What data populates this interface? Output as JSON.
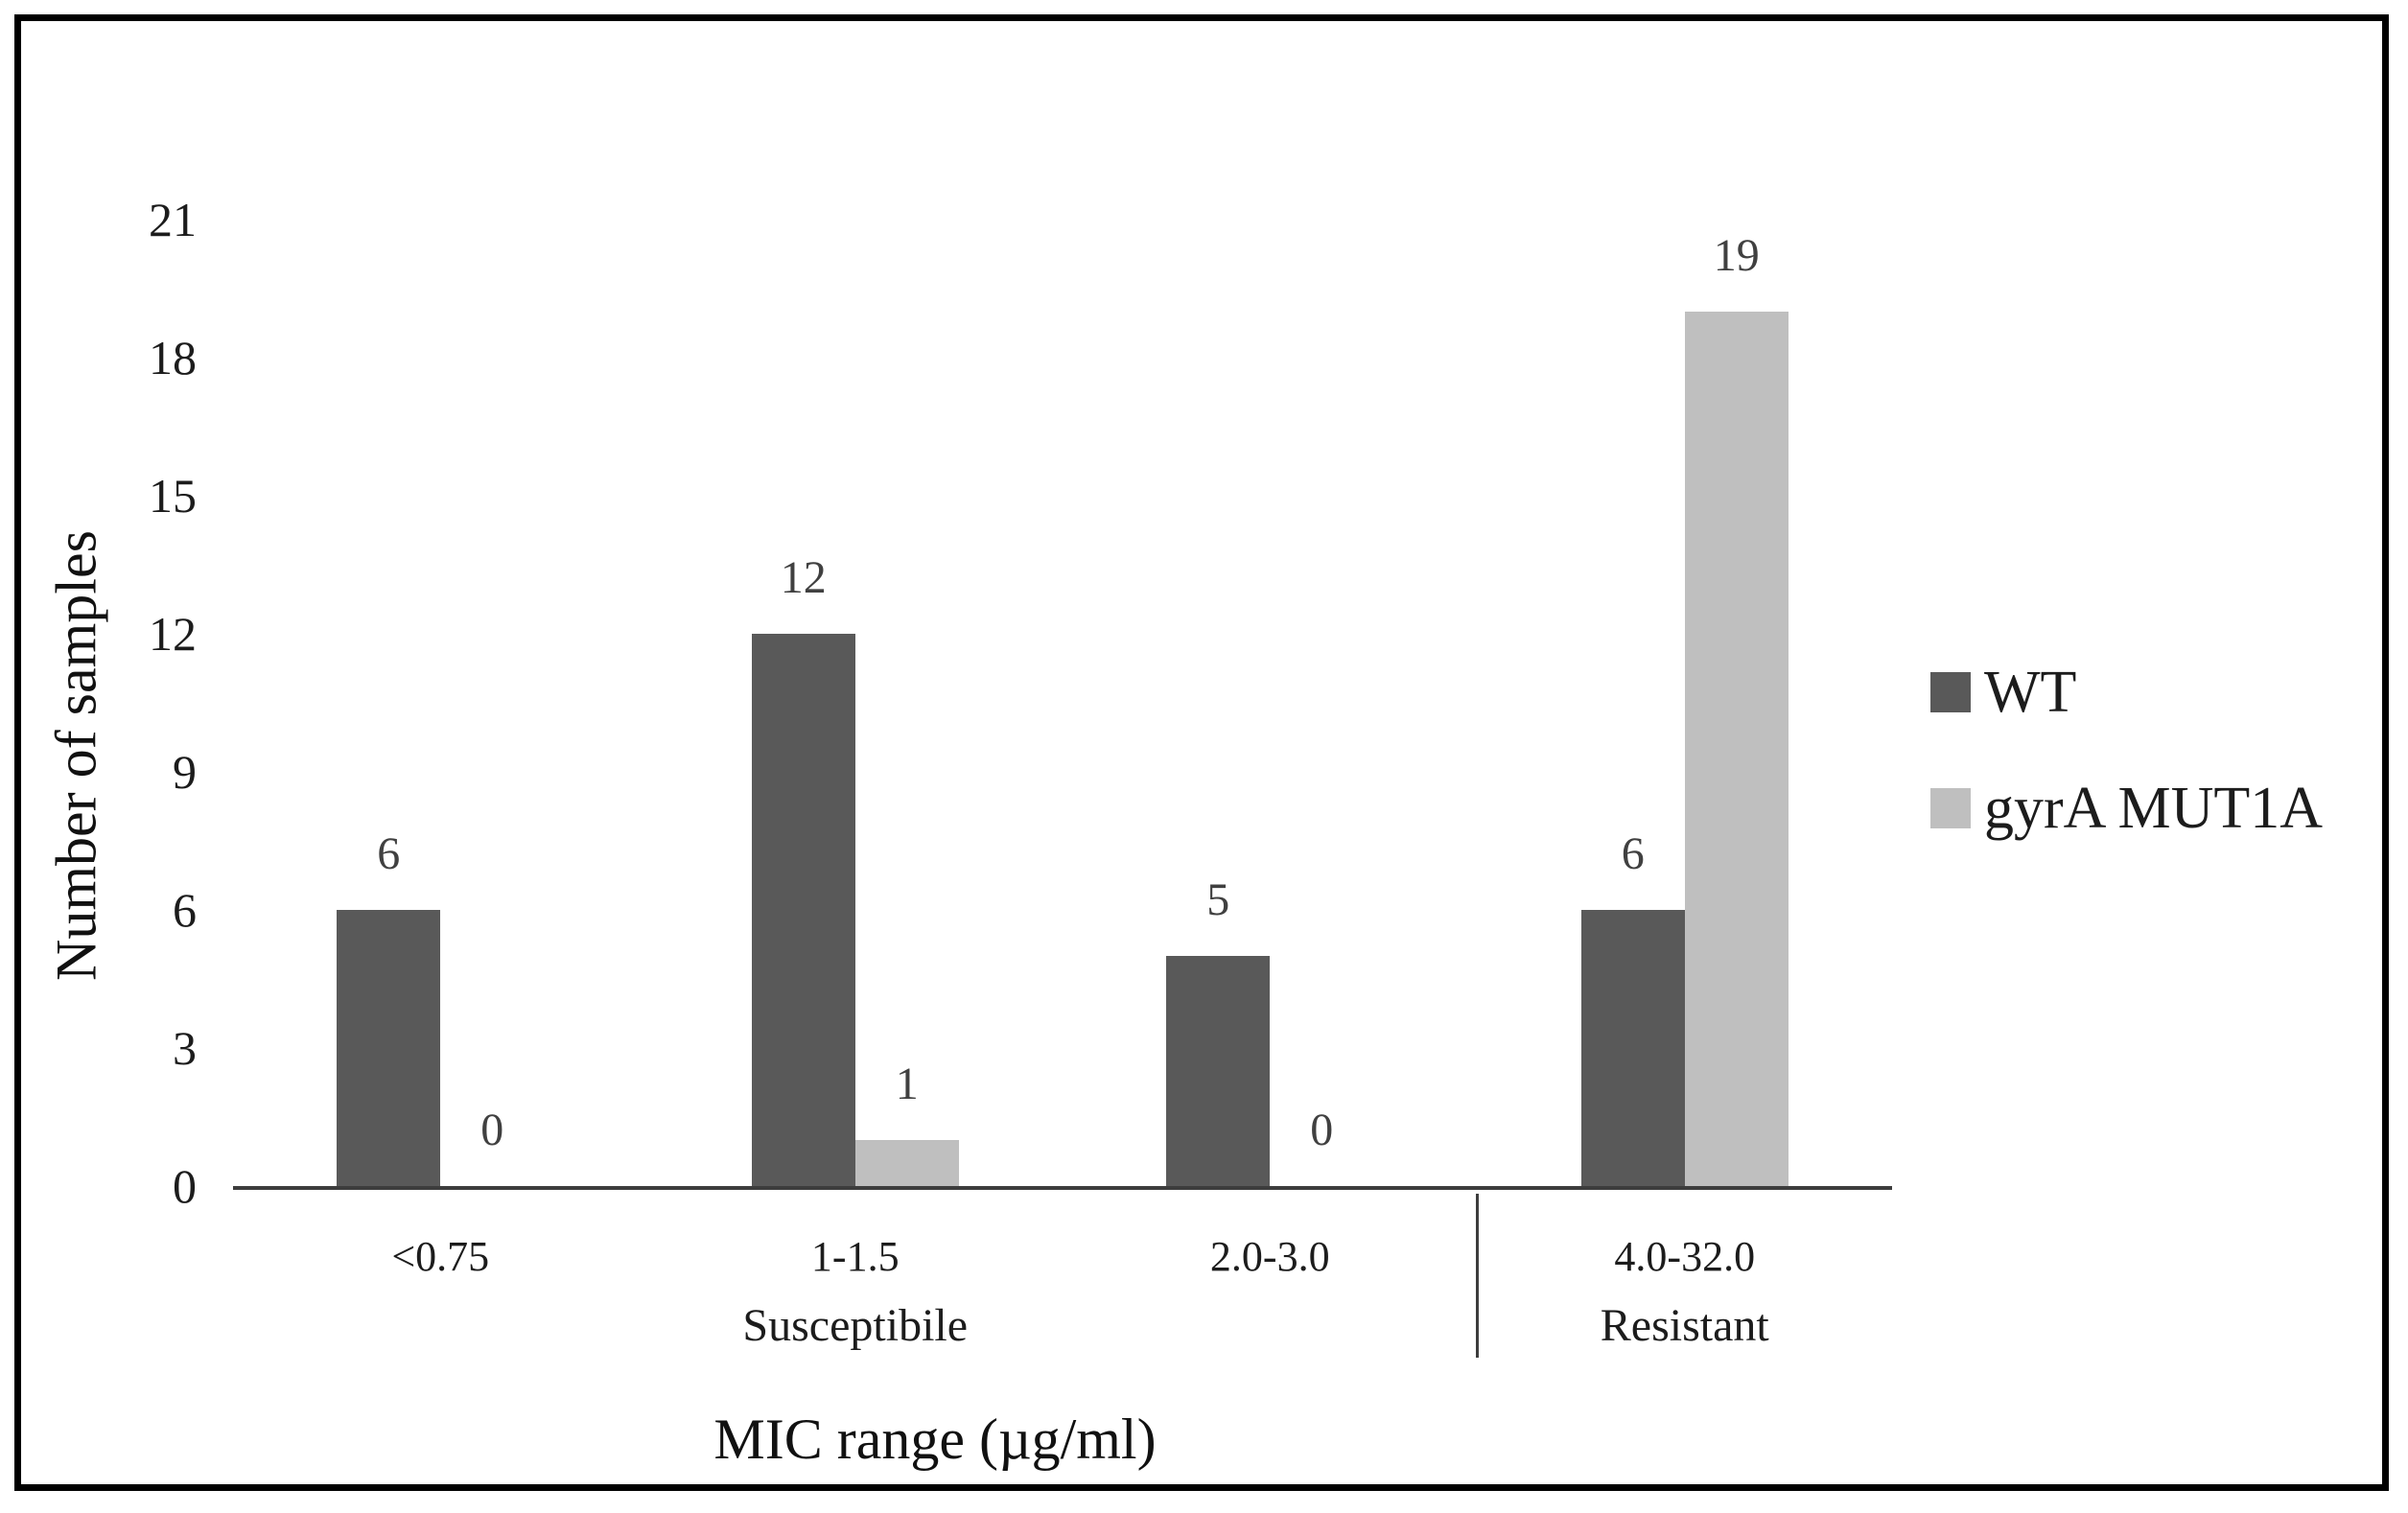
{
  "figure": {
    "background": "#ffffff",
    "frame_color": "#000000",
    "axis_color": "#3d3d3d",
    "text_color": "#1c1c1c",
    "data_label_color": "#404040"
  },
  "chart_data": {
    "type": "bar",
    "title": "",
    "categories": [
      "<0.75",
      "1-1.5",
      "2.0-3.0",
      "4.0-32.0"
    ],
    "series": [
      {
        "name": "WT",
        "color": "#595959",
        "values": [
          6,
          12,
          5,
          6
        ]
      },
      {
        "name": "gyrA MUT1A",
        "color": "#bfbfbf",
        "values": [
          0,
          1,
          0,
          19
        ]
      }
    ],
    "data_labels": [
      [
        "6",
        "12",
        "5",
        "6"
      ],
      [
        "0",
        "1",
        "0",
        "19"
      ]
    ],
    "group_labels": [
      {
        "label": "Susceptibile",
        "col_start": 0,
        "col_end": 2
      },
      {
        "label": "Resistant",
        "col_start": 3,
        "col_end": 3
      }
    ],
    "xlabel": "MIC range (µg/ml)",
    "ylabel": "Number of samples",
    "ylim": [
      0,
      21
    ],
    "yticks": [
      0,
      3,
      6,
      9,
      12,
      15,
      18,
      21
    ],
    "grid": false,
    "legend_position": "right",
    "show_data_labels": true
  }
}
